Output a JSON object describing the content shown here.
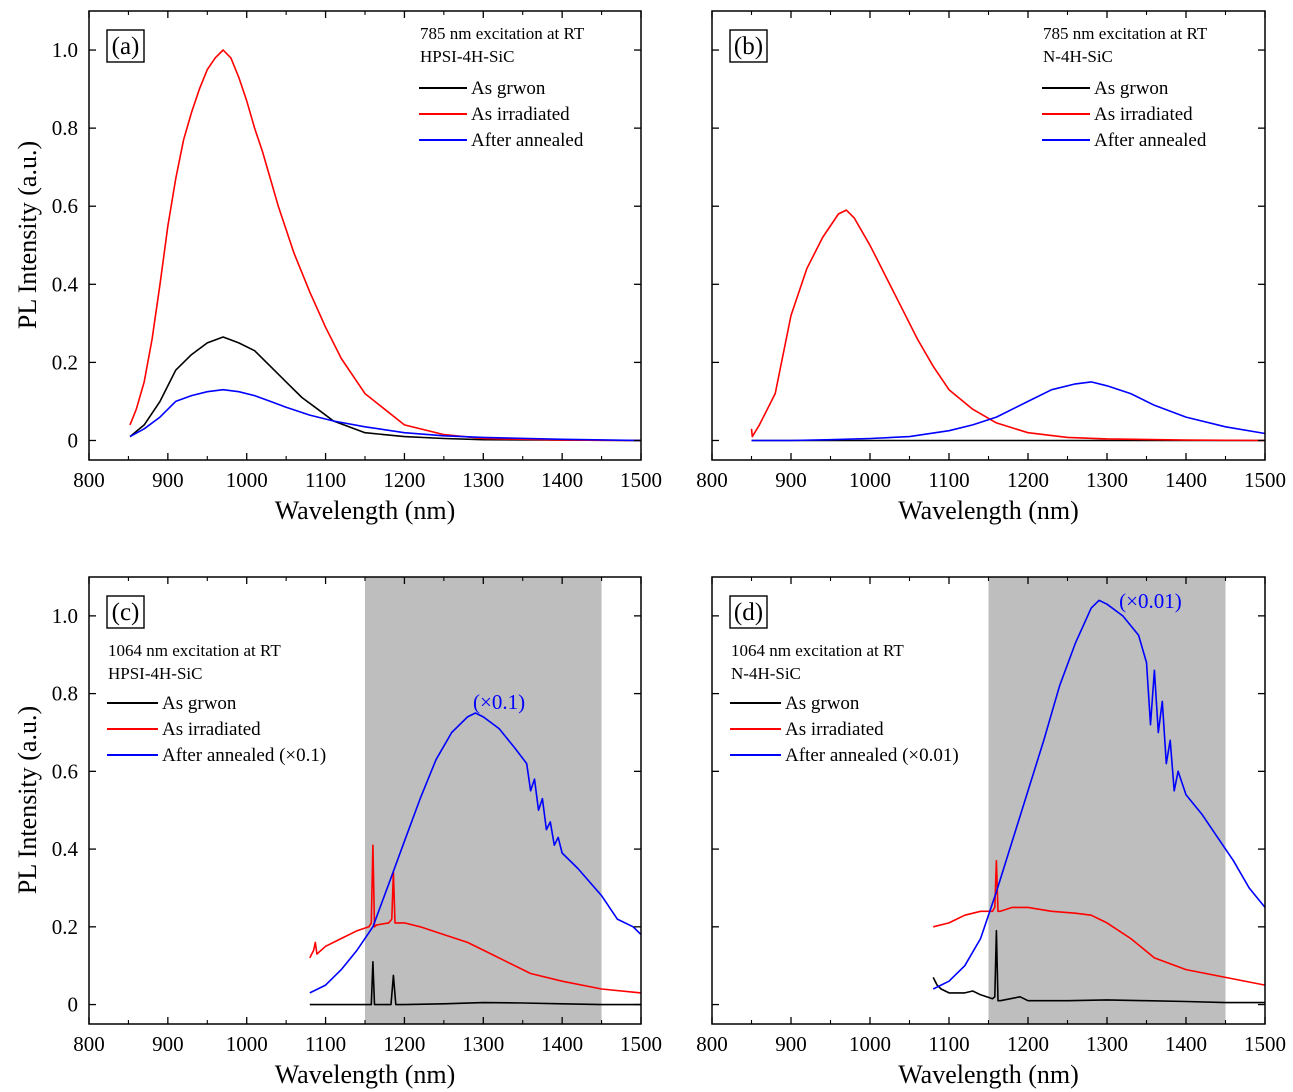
{
  "figure": {
    "y_axis_title": "PL Intensity (a.u.)",
    "colors": {
      "as_grown": "#000000",
      "as_irradiated": "#ff0000",
      "after_annealed": "#0000ff",
      "shade": "#bebebe"
    }
  },
  "chart_data": [
    {
      "panel": "(a)",
      "type": "line",
      "xlabel": "Wavelength (nm)",
      "ylabel": "PL Intensity (a.u.)",
      "xlim": [
        800,
        1500
      ],
      "ylim": [
        -0.05,
        1.1
      ],
      "xticks": [
        800,
        900,
        1000,
        1100,
        1200,
        1300,
        1400,
        1500
      ],
      "yticks": [
        0,
        0.2,
        0.4,
        0.6,
        0.8,
        1.0
      ],
      "ytick_labels": [
        "0",
        "0.2",
        "0.4",
        "0.6",
        "0.8",
        "1.0"
      ],
      "notes": [
        "785 nm excitation at RT",
        "HPSI-4H-SiC"
      ],
      "legend_position": "top-right",
      "legend": [
        "As grwon",
        "As irradiated",
        "After annealed"
      ],
      "shaded_region": null,
      "annotation": null,
      "series": [
        {
          "name": "As grwon",
          "color": "#000000",
          "x": [
            852,
            870,
            890,
            910,
            930,
            950,
            970,
            990,
            1010,
            1030,
            1050,
            1070,
            1090,
            1110,
            1150,
            1200,
            1250,
            1300,
            1400,
            1500
          ],
          "y": [
            0.01,
            0.04,
            0.1,
            0.18,
            0.22,
            0.25,
            0.265,
            0.25,
            0.23,
            0.19,
            0.15,
            0.11,
            0.08,
            0.05,
            0.02,
            0.01,
            0.005,
            0.002,
            0.001,
            0.0
          ]
        },
        {
          "name": "As irradiated",
          "color": "#ff0000",
          "x": [
            852,
            860,
            870,
            880,
            890,
            900,
            910,
            920,
            930,
            940,
            950,
            960,
            970,
            980,
            990,
            1000,
            1010,
            1020,
            1030,
            1040,
            1060,
            1080,
            1100,
            1120,
            1150,
            1200,
            1250,
            1300,
            1400,
            1500
          ],
          "y": [
            0.04,
            0.08,
            0.15,
            0.26,
            0.4,
            0.55,
            0.67,
            0.77,
            0.84,
            0.9,
            0.95,
            0.98,
            1.0,
            0.98,
            0.93,
            0.87,
            0.8,
            0.74,
            0.67,
            0.6,
            0.48,
            0.38,
            0.29,
            0.21,
            0.12,
            0.04,
            0.015,
            0.005,
            0.001,
            0.0
          ]
        },
        {
          "name": "After annealed",
          "color": "#0000ff",
          "x": [
            852,
            870,
            890,
            910,
            930,
            950,
            970,
            990,
            1010,
            1030,
            1050,
            1080,
            1110,
            1150,
            1200,
            1250,
            1300,
            1400,
            1500
          ],
          "y": [
            0.01,
            0.03,
            0.06,
            0.1,
            0.115,
            0.125,
            0.13,
            0.125,
            0.115,
            0.1,
            0.085,
            0.065,
            0.05,
            0.035,
            0.02,
            0.012,
            0.008,
            0.003,
            0.0
          ]
        }
      ]
    },
    {
      "panel": "(b)",
      "type": "line",
      "xlabel": "Wavelength (nm)",
      "ylabel": "",
      "xlim": [
        800,
        1500
      ],
      "ylim": [
        -0.05,
        1.1
      ],
      "xticks": [
        800,
        900,
        1000,
        1100,
        1200,
        1300,
        1400,
        1500
      ],
      "yticks": [
        0,
        0.2,
        0.4,
        0.6,
        0.8,
        1.0
      ],
      "ytick_labels": [],
      "notes": [
        "785 nm excitation at RT",
        "N-4H-SiC"
      ],
      "legend_position": "top-right",
      "legend": [
        "As grwon",
        "As irradiated",
        "After annealed"
      ],
      "shaded_region": null,
      "annotation": null,
      "series": [
        {
          "name": "As grwon",
          "color": "#000000",
          "x": [
            850,
            1000,
            1200,
            1500
          ],
          "y": [
            0.0,
            0.0,
            0.0,
            0.0
          ]
        },
        {
          "name": "As irradiated",
          "color": "#ff0000",
          "x": [
            850,
            851,
            860,
            880,
            900,
            920,
            940,
            960,
            970,
            980,
            1000,
            1020,
            1040,
            1060,
            1080,
            1100,
            1130,
            1160,
            1200,
            1250,
            1300,
            1400,
            1500
          ],
          "y": [
            0.03,
            0.01,
            0.04,
            0.12,
            0.32,
            0.44,
            0.52,
            0.58,
            0.59,
            0.57,
            0.5,
            0.42,
            0.34,
            0.26,
            0.19,
            0.13,
            0.08,
            0.045,
            0.02,
            0.008,
            0.004,
            0.001,
            0.0
          ]
        },
        {
          "name": "After annealed",
          "color": "#0000ff",
          "x": [
            850,
            900,
            950,
            1000,
            1050,
            1100,
            1130,
            1160,
            1200,
            1230,
            1260,
            1280,
            1300,
            1330,
            1360,
            1400,
            1450,
            1500
          ],
          "y": [
            0.0,
            0.0,
            0.002,
            0.005,
            0.01,
            0.025,
            0.04,
            0.06,
            0.1,
            0.13,
            0.145,
            0.15,
            0.14,
            0.12,
            0.09,
            0.06,
            0.035,
            0.018
          ]
        }
      ]
    },
    {
      "panel": "(c)",
      "type": "line",
      "xlabel": "Wavelength (nm)",
      "ylabel": "PL Intensity (a.u.)",
      "xlim": [
        800,
        1500
      ],
      "ylim": [
        -0.05,
        1.1
      ],
      "xticks": [
        800,
        900,
        1000,
        1100,
        1200,
        1300,
        1400,
        1500
      ],
      "yticks": [
        0,
        0.2,
        0.4,
        0.6,
        0.8,
        1.0
      ],
      "ytick_labels": [
        "0",
        "0.2",
        "0.4",
        "0.6",
        "0.8",
        "1.0"
      ],
      "notes": [
        "1064 nm excitation at RT",
        "HPSI-4H-SiC"
      ],
      "legend_position": "top-left",
      "legend": [
        "As grwon",
        "As irradiated",
        "After annealed (×0.1)"
      ],
      "shaded_region": [
        1150,
        1450
      ],
      "annotation": {
        "text": "(×0.1)",
        "x": 1320,
        "y": 0.76
      },
      "series": [
        {
          "name": "As grwon",
          "color": "#000000",
          "x": [
            1080,
            1100,
            1155,
            1158,
            1160,
            1162,
            1165,
            1183,
            1186,
            1189,
            1200,
            1250,
            1300,
            1350,
            1400,
            1450,
            1500
          ],
          "y": [
            0.0,
            0.0,
            0.0,
            0.0,
            0.11,
            0.0,
            0.0,
            0.0,
            0.075,
            0.0,
            0.0,
            0.002,
            0.005,
            0.004,
            0.002,
            0.0,
            0.0
          ]
        },
        {
          "name": "As irradiated",
          "color": "#ff0000",
          "x": [
            1080,
            1085,
            1087,
            1089,
            1100,
            1120,
            1140,
            1155,
            1158,
            1160,
            1162,
            1165,
            1180,
            1184,
            1186,
            1188,
            1200,
            1220,
            1250,
            1280,
            1300,
            1330,
            1360,
            1400,
            1450,
            1500
          ],
          "y": [
            0.12,
            0.14,
            0.16,
            0.13,
            0.15,
            0.17,
            0.19,
            0.2,
            0.21,
            0.41,
            0.2,
            0.205,
            0.21,
            0.22,
            0.34,
            0.21,
            0.21,
            0.2,
            0.18,
            0.16,
            0.14,
            0.11,
            0.08,
            0.06,
            0.04,
            0.03
          ]
        },
        {
          "name": "After annealed (×0.1)",
          "color": "#0000ff",
          "x": [
            1080,
            1100,
            1120,
            1140,
            1160,
            1180,
            1200,
            1220,
            1240,
            1260,
            1280,
            1290,
            1300,
            1320,
            1340,
            1355,
            1360,
            1365,
            1370,
            1375,
            1380,
            1385,
            1390,
            1395,
            1400,
            1420,
            1450,
            1470,
            1490,
            1500
          ],
          "y": [
            0.03,
            0.05,
            0.09,
            0.14,
            0.2,
            0.31,
            0.42,
            0.53,
            0.63,
            0.7,
            0.74,
            0.75,
            0.74,
            0.71,
            0.66,
            0.62,
            0.55,
            0.58,
            0.5,
            0.53,
            0.45,
            0.47,
            0.41,
            0.43,
            0.39,
            0.35,
            0.28,
            0.22,
            0.2,
            0.18
          ]
        }
      ]
    },
    {
      "panel": "(d)",
      "type": "line",
      "xlabel": "Wavelength (nm)",
      "ylabel": "",
      "xlim": [
        800,
        1500
      ],
      "ylim": [
        -0.05,
        1.1
      ],
      "xticks": [
        800,
        900,
        1000,
        1100,
        1200,
        1300,
        1400,
        1500
      ],
      "yticks": [
        0,
        0.2,
        0.4,
        0.6,
        0.8,
        1.0
      ],
      "ytick_labels": [],
      "notes": [
        "1064 nm excitation at RT",
        "N-4H-SiC"
      ],
      "legend_position": "top-left",
      "legend": [
        "As grwon",
        "As irradiated",
        "After annealed (×0.01)"
      ],
      "shaded_region": [
        1150,
        1450
      ],
      "annotation": {
        "text": "(×0.01)",
        "x": 1355,
        "y": 1.02
      },
      "series": [
        {
          "name": "As grwon",
          "color": "#000000",
          "x": [
            1080,
            1085,
            1090,
            1100,
            1120,
            1130,
            1140,
            1155,
            1158,
            1160,
            1162,
            1165,
            1190,
            1200,
            1250,
            1300,
            1350,
            1400,
            1450,
            1500
          ],
          "y": [
            0.07,
            0.05,
            0.04,
            0.03,
            0.03,
            0.035,
            0.025,
            0.015,
            0.02,
            0.19,
            0.01,
            0.01,
            0.02,
            0.01,
            0.01,
            0.012,
            0.01,
            0.008,
            0.005,
            0.005
          ]
        },
        {
          "name": "As irradiated",
          "color": "#ff0000",
          "x": [
            1080,
            1100,
            1120,
            1140,
            1155,
            1158,
            1160,
            1162,
            1165,
            1180,
            1200,
            1230,
            1260,
            1280,
            1300,
            1330,
            1360,
            1400,
            1450,
            1500
          ],
          "y": [
            0.2,
            0.21,
            0.23,
            0.24,
            0.24,
            0.25,
            0.37,
            0.24,
            0.24,
            0.25,
            0.25,
            0.24,
            0.235,
            0.23,
            0.21,
            0.17,
            0.12,
            0.09,
            0.07,
            0.05
          ]
        },
        {
          "name": "After annealed (×0.01)",
          "color": "#0000ff",
          "x": [
            1080,
            1100,
            1120,
            1140,
            1160,
            1180,
            1200,
            1220,
            1240,
            1260,
            1280,
            1290,
            1300,
            1320,
            1340,
            1350,
            1355,
            1360,
            1365,
            1370,
            1375,
            1380,
            1385,
            1390,
            1400,
            1420,
            1440,
            1460,
            1480,
            1500
          ],
          "y": [
            0.04,
            0.06,
            0.1,
            0.17,
            0.29,
            0.42,
            0.55,
            0.68,
            0.82,
            0.93,
            1.02,
            1.04,
            1.03,
            1.0,
            0.95,
            0.88,
            0.72,
            0.86,
            0.7,
            0.78,
            0.62,
            0.68,
            0.55,
            0.6,
            0.54,
            0.49,
            0.43,
            0.37,
            0.3,
            0.25
          ]
        }
      ]
    }
  ]
}
